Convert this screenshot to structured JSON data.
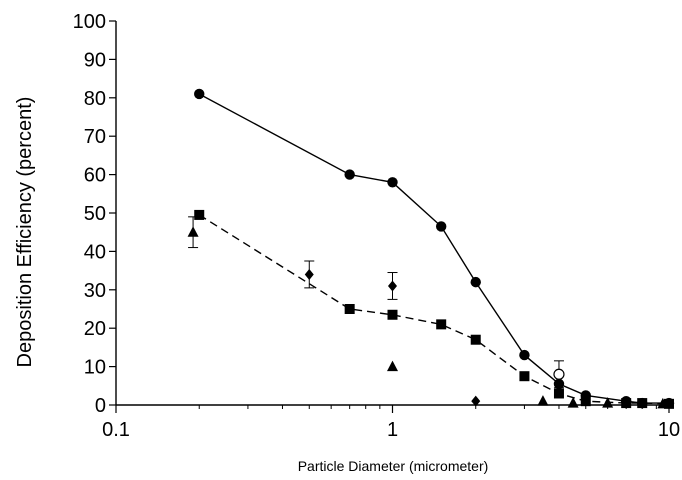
{
  "chart_data": {
    "type": "scatter",
    "title": "",
    "xlabel": "Particle Diameter (micrometer)",
    "ylabel": "Deposition  Efficiency  (percent)",
    "xscale": "log",
    "xlim": [
      0.1,
      10
    ],
    "ylim": [
      0,
      100
    ],
    "xticks": [
      0.1,
      1,
      10
    ],
    "xtick_labels": [
      "0.1",
      "1",
      "10"
    ],
    "yticks": [
      0,
      10,
      20,
      30,
      40,
      50,
      60,
      70,
      80,
      90,
      100
    ],
    "ytick_labels": [
      "0",
      "10",
      "20",
      "30",
      "40",
      "50",
      "60",
      "70",
      "80",
      "90",
      "100"
    ],
    "grid": false,
    "series": [
      {
        "marker": "circle",
        "line": "solid",
        "color": "#000000",
        "points": [
          {
            "x": 0.2,
            "y": 81
          },
          {
            "x": 0.7,
            "y": 60
          },
          {
            "x": 1.0,
            "y": 58
          },
          {
            "x": 1.5,
            "y": 46.5
          },
          {
            "x": 2.0,
            "y": 32
          },
          {
            "x": 3.0,
            "y": 13
          },
          {
            "x": 4.0,
            "y": 5.5
          },
          {
            "x": 5.0,
            "y": 2.5
          },
          {
            "x": 7.0,
            "y": 1
          },
          {
            "x": 8.0,
            "y": 0.5
          },
          {
            "x": 10.0,
            "y": 0.5
          }
        ]
      },
      {
        "marker": "square",
        "line": "dashed",
        "color": "#000000",
        "points": [
          {
            "x": 0.2,
            "y": 49.5
          },
          {
            "x": 0.7,
            "y": 25
          },
          {
            "x": 1.0,
            "y": 23.5
          },
          {
            "x": 1.5,
            "y": 21
          },
          {
            "x": 2.0,
            "y": 17
          },
          {
            "x": 3.0,
            "y": 7.5
          },
          {
            "x": 4.0,
            "y": 3
          },
          {
            "x": 5.0,
            "y": 1
          },
          {
            "x": 7.0,
            "y": 0.5
          },
          {
            "x": 8.0,
            "y": 0.5
          },
          {
            "x": 10.0,
            "y": 0.3
          }
        ]
      },
      {
        "marker": "triangle",
        "line": "none",
        "color": "#000000",
        "points": [
          {
            "x": 0.19,
            "y": 45,
            "err": 4
          },
          {
            "x": 1.0,
            "y": 10
          },
          {
            "x": 3.5,
            "y": 1
          },
          {
            "x": 4.5,
            "y": 0.5
          },
          {
            "x": 6.0,
            "y": 0.5
          },
          {
            "x": 9.5,
            "y": 0.3
          }
        ]
      },
      {
        "marker": "diamond",
        "line": "none",
        "color": "#000000",
        "points": [
          {
            "x": 0.5,
            "y": 34,
            "err": 3.5
          },
          {
            "x": 1.0,
            "y": 31,
            "err": 3.5
          },
          {
            "x": 2.0,
            "y": 1
          }
        ]
      },
      {
        "marker": "open-circle",
        "line": "none",
        "color": "#000000",
        "points": [
          {
            "x": 4.0,
            "y": 8,
            "err": 3.5
          }
        ]
      }
    ]
  }
}
